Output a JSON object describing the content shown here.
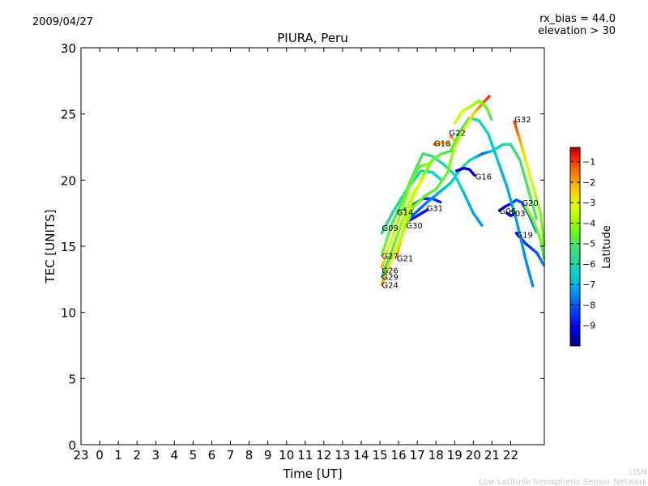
{
  "header": {
    "date": "2009/04/27",
    "title": "PIURA, Peru",
    "rx_bias": "rx_bias = 44.0",
    "elevation": "elevation > 30"
  },
  "footer": {
    "org_short": "LISN",
    "org_long": "Low-Latitude Ionospheric Sensor Network"
  },
  "colorbar": {
    "label": "Latitude",
    "min": -10,
    "max": -0.3,
    "ticks": [
      -1,
      -2,
      -3,
      -4,
      -5,
      -6,
      -7,
      -8,
      -9
    ],
    "colors": [
      "#000080",
      "#0000ff",
      "#0080ff",
      "#00d0d0",
      "#40e070",
      "#80ff00",
      "#e0ff00",
      "#ffd000",
      "#ff7000",
      "#ff2000",
      "#b00000"
    ]
  },
  "chart_data": {
    "type": "scatter",
    "xlabel": "Time [UT]",
    "ylabel": "TEC [UNITS]",
    "xlim": [
      -1,
      23.8
    ],
    "ylim": [
      0,
      30
    ],
    "x_ticks": [
      -1,
      0,
      1,
      2,
      3,
      4,
      5,
      6,
      7,
      8,
      9,
      10,
      11,
      12,
      13,
      14,
      15,
      16,
      17,
      18,
      19,
      20,
      21,
      22
    ],
    "x_tick_labels": [
      "23",
      "0",
      "1",
      "2",
      "3",
      "4",
      "5",
      "6",
      "7",
      "8",
      "9",
      "10",
      "11",
      "12",
      "13",
      "14",
      "15",
      "16",
      "17",
      "18",
      "19",
      "20",
      "21",
      "22"
    ],
    "y_ticks": [
      0,
      5,
      10,
      15,
      20,
      25,
      30
    ],
    "series": [
      {
        "name": "G09",
        "points": [
          [
            15.1,
            16.0,
            -5.5
          ],
          [
            15.7,
            17.6,
            -5.8
          ],
          [
            16.4,
            19.2,
            -6.0
          ],
          [
            17.2,
            20.7,
            -6.2
          ],
          [
            17.8,
            20.6,
            -6.4
          ],
          [
            18.3,
            20.0,
            -6.5
          ]
        ]
      },
      {
        "name": "G14",
        "points": [
          [
            16.0,
            17.6,
            -7.2
          ],
          [
            16.6,
            18.0,
            -8.0
          ],
          [
            17.3,
            18.6,
            -8.4
          ],
          [
            17.8,
            18.6,
            -8.6
          ],
          [
            18.3,
            18.3,
            -8.6
          ]
        ]
      },
      {
        "name": "G30",
        "points": [
          [
            16.4,
            16.8,
            -8.6
          ],
          [
            17.0,
            17.3,
            -8.8
          ],
          [
            17.6,
            17.8,
            -9.0
          ]
        ]
      },
      {
        "name": "G31",
        "points": [
          [
            16.5,
            17.0,
            -8.0
          ],
          [
            17.5,
            18.3,
            -7.8
          ],
          [
            18.2,
            19.1,
            -7.0
          ],
          [
            18.8,
            19.8,
            -6.5
          ],
          [
            19.3,
            20.8,
            -6.0
          ],
          [
            19.8,
            21.5,
            -5.8
          ],
          [
            20.5,
            22.0,
            -8.0
          ],
          [
            21.0,
            22.2,
            -6.8
          ],
          [
            21.6,
            22.7,
            -6.0
          ],
          [
            22.0,
            22.7,
            -5.5
          ],
          [
            22.5,
            21.5,
            -5.2
          ],
          [
            23.0,
            19.0,
            -5.0
          ],
          [
            23.4,
            17.0,
            -5.0
          ]
        ]
      },
      {
        "name": "G18",
        "points": [
          [
            17.9,
            22.7,
            -1.8
          ],
          [
            18.2,
            22.8,
            -2.0
          ],
          [
            18.6,
            22.8,
            -2.5
          ],
          [
            18.8,
            22.6,
            -2.8
          ]
        ]
      },
      {
        "name": "G22",
        "points": [
          [
            18.8,
            23.3,
            -1.5
          ],
          [
            19.0,
            23.0,
            -2.5
          ]
        ]
      },
      {
        "name": "G16",
        "points": [
          [
            19.1,
            20.7,
            -9.3
          ],
          [
            19.5,
            20.9,
            -9.4
          ],
          [
            19.8,
            20.8,
            -9.5
          ],
          [
            20.1,
            20.3,
            -9.5
          ]
        ]
      },
      {
        "name": "G06",
        "points": [
          [
            21.4,
            17.7,
            -9.5
          ],
          [
            21.7,
            18.0,
            -9.4
          ],
          [
            22.0,
            18.2,
            -8.8
          ],
          [
            22.3,
            18.5,
            -8.2
          ],
          [
            22.6,
            18.3,
            -8.0
          ],
          [
            23.0,
            17.3,
            -7.8
          ],
          [
            23.4,
            16.0,
            -7.5
          ]
        ]
      },
      {
        "name": "G03",
        "points": [
          [
            21.8,
            17.5,
            -9.5
          ],
          [
            22.0,
            17.3,
            -9.3
          ],
          [
            22.3,
            17.5,
            -9.0
          ]
        ]
      },
      {
        "name": "G19",
        "points": [
          [
            22.3,
            16.0,
            -9.0
          ],
          [
            22.8,
            15.2,
            -8.5
          ],
          [
            23.4,
            14.5,
            -8.0
          ],
          [
            23.8,
            13.5,
            -7.5
          ]
        ]
      },
      {
        "name": "G32",
        "points": [
          [
            22.2,
            24.4,
            -1.0
          ],
          [
            22.5,
            23.0,
            -2.0
          ],
          [
            22.9,
            21.0,
            -3.0
          ],
          [
            23.2,
            19.5,
            -3.5
          ],
          [
            23.6,
            17.5,
            -4.2
          ],
          [
            23.8,
            15.0,
            -4.5
          ]
        ]
      },
      {
        "name": "G20",
        "points": [
          [
            22.8,
            18.0,
            -4.0
          ],
          [
            23.2,
            17.0,
            -4.3
          ],
          [
            23.6,
            15.5,
            -4.6
          ],
          [
            23.8,
            14.0,
            -5.0
          ]
        ]
      },
      {
        "name": "G27",
        "points": [
          [
            15.1,
            14.3,
            -4.5
          ],
          [
            15.6,
            16.5,
            -4.8
          ],
          [
            16.3,
            18.8,
            -5.0
          ],
          [
            16.9,
            20.8,
            -5.0
          ],
          [
            17.3,
            22.0,
            -5.2
          ],
          [
            17.8,
            21.8,
            -5.6
          ],
          [
            18.4,
            21.2,
            -6.0
          ],
          [
            19.0,
            20.4,
            -6.3
          ],
          [
            19.5,
            19.0,
            -6.8
          ],
          [
            20.0,
            17.5,
            -7.2
          ],
          [
            20.5,
            16.5,
            -7.4
          ]
        ]
      },
      {
        "name": "G21",
        "points": [
          [
            15.9,
            14.2,
            -2.0
          ],
          [
            16.3,
            16.5,
            -2.8
          ],
          [
            16.8,
            18.8,
            -3.5
          ],
          [
            17.3,
            20.3,
            -4.0
          ],
          [
            17.8,
            21.5,
            -4.5
          ],
          [
            18.3,
            22.0,
            -4.8
          ],
          [
            18.8,
            22.2,
            -5.0
          ],
          [
            19.3,
            23.7,
            -5.0
          ],
          [
            19.8,
            24.7,
            -5.4
          ],
          [
            20.3,
            24.5,
            -6.0
          ],
          [
            20.8,
            23.5,
            -6.5
          ],
          [
            21.3,
            21.5,
            -6.8
          ],
          [
            21.8,
            19.5,
            -7.0
          ],
          [
            22.3,
            17.0,
            -7.2
          ],
          [
            22.8,
            14.0,
            -7.4
          ],
          [
            23.2,
            11.9,
            -7.5
          ]
        ]
      },
      {
        "name": "G26",
        "points": [
          [
            15.1,
            13.4,
            -2.0
          ],
          [
            15.5,
            15.0,
            -3.0
          ],
          [
            16.0,
            17.0,
            -3.8
          ],
          [
            16.6,
            19.6,
            -4.4
          ],
          [
            17.1,
            21.0,
            -4.8
          ],
          [
            17.7,
            21.3,
            -3.8
          ]
        ]
      },
      {
        "name": "G29",
        "points": [
          [
            15.1,
            12.7,
            -5.6
          ],
          [
            15.6,
            14.5,
            -5.0
          ],
          [
            16.2,
            16.9,
            -4.0
          ],
          [
            16.8,
            19.1,
            -3.3
          ],
          [
            17.4,
            20.3,
            -3.0
          ]
        ]
      },
      {
        "name": "G24",
        "points": [
          [
            15.1,
            12.1,
            -1.8
          ],
          [
            15.4,
            13.2,
            -2.5
          ],
          [
            15.8,
            14.6,
            -3.2
          ],
          [
            16.3,
            16.2,
            -3.8
          ],
          [
            16.8,
            18.0,
            -4.2
          ],
          [
            17.4,
            18.8,
            -4.5
          ],
          [
            18.0,
            19.3,
            -4.9
          ],
          [
            18.6,
            20.5,
            -4.5
          ],
          [
            19.0,
            22.5,
            -3.8
          ],
          [
            19.5,
            23.8,
            -3.2
          ],
          [
            20.0,
            25.0,
            -2.5
          ],
          [
            20.5,
            25.8,
            -1.5
          ],
          [
            20.9,
            26.4,
            -0.8
          ]
        ]
      },
      {
        "name": "",
        "points": [
          [
            19.0,
            24.3,
            -3.5
          ],
          [
            19.4,
            25.2,
            -3.2
          ],
          [
            19.9,
            25.6,
            -3.8
          ],
          [
            20.3,
            26.0,
            -4.2
          ],
          [
            20.7,
            25.5,
            -4.5
          ],
          [
            21.0,
            24.5,
            -5.0
          ]
        ]
      }
    ],
    "labels": [
      {
        "text": "G09",
        "x": 15.1,
        "y": 16.4
      },
      {
        "text": "G14",
        "x": 15.9,
        "y": 17.6
      },
      {
        "text": "G30",
        "x": 16.4,
        "y": 16.6
      },
      {
        "text": "G31",
        "x": 17.5,
        "y": 17.9
      },
      {
        "text": "G18",
        "x": 17.9,
        "y": 22.8
      },
      {
        "text": "G22",
        "x": 18.7,
        "y": 23.6
      },
      {
        "text": "G16",
        "x": 20.1,
        "y": 20.3
      },
      {
        "text": "G06",
        "x": 21.4,
        "y": 17.7
      },
      {
        "text": "G03",
        "x": 21.9,
        "y": 17.5
      },
      {
        "text": "G19",
        "x": 22.3,
        "y": 15.9
      },
      {
        "text": "G32",
        "x": 22.2,
        "y": 24.6
      },
      {
        "text": "G20",
        "x": 22.6,
        "y": 18.3
      },
      {
        "text": "G27",
        "x": 15.1,
        "y": 14.3
      },
      {
        "text": "G21",
        "x": 15.9,
        "y": 14.1
      },
      {
        "text": "G26",
        "x": 15.1,
        "y": 13.2
      },
      {
        "text": "G29",
        "x": 15.1,
        "y": 12.7
      },
      {
        "text": "G24",
        "x": 15.1,
        "y": 12.1
      }
    ]
  }
}
